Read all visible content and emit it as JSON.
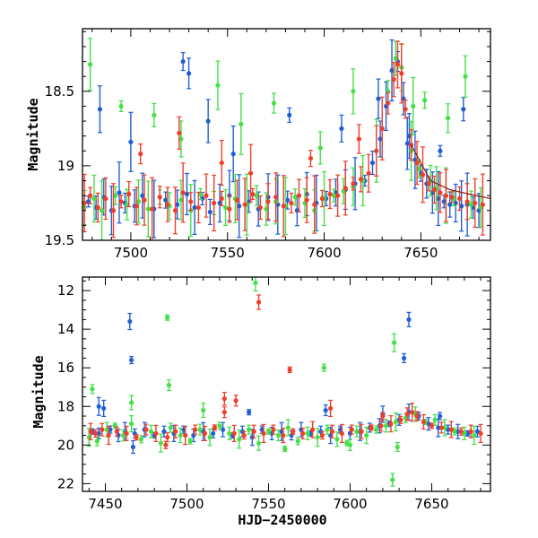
{
  "colors": {
    "blue": "#1f5fd6",
    "green": "#44e048",
    "red": "#f03e2a",
    "axis": "#000000"
  },
  "chart_data": [
    {
      "type": "scatter",
      "xlabel": "",
      "ylabel": "Magnitude",
      "xlim": [
        7475,
        7686
      ],
      "ylim": [
        19.5,
        18.08
      ],
      "y_inverted": true,
      "grid": false,
      "xticks": [
        7500,
        7550,
        7600,
        7650
      ],
      "yticks": [
        19.5,
        19,
        18.5
      ],
      "ytick_labels": [
        "19.5",
        "19",
        "18.5"
      ],
      "series": [
        {
          "color_key": "blue",
          "x": [
            7478,
            7482,
            7486,
            7490,
            7494,
            7497,
            7502,
            7506,
            7512,
            7518,
            7524,
            7529,
            7533,
            7537,
            7541,
            7546,
            7551,
            7556,
            7561,
            7566,
            7571,
            7576,
            7581,
            7586,
            7591,
            7596,
            7601,
            7606,
            7611,
            7616,
            7621,
            7625,
            7629,
            7632,
            7635,
            7638,
            7641,
            7644,
            7647,
            7650,
            7653,
            7656,
            7659,
            7662,
            7665,
            7668,
            7671,
            7674,
            7677,
            7680,
            7484,
            7500,
            7527,
            7530,
            7540,
            7553,
            7582,
            7609,
            7628,
            7643,
            7660,
            7672
          ],
          "y": [
            19.24,
            19.28,
            19.21,
            19.3,
            19.18,
            19.25,
            19.27,
            19.2,
            19.29,
            19.23,
            19.26,
            19.19,
            19.28,
            19.22,
            19.31,
            19.25,
            19.2,
            19.27,
            19.24,
            19.29,
            19.21,
            19.26,
            19.23,
            19.3,
            19.19,
            19.25,
            19.22,
            19.18,
            19.16,
            19.12,
            19.1,
            18.98,
            18.82,
            18.6,
            18.36,
            18.3,
            18.55,
            18.8,
            18.96,
            19.05,
            19.12,
            19.18,
            19.22,
            19.24,
            19.26,
            19.25,
            19.27,
            19.26,
            19.28,
            19.3,
            18.62,
            18.84,
            18.3,
            18.38,
            18.7,
            18.92,
            18.66,
            18.75,
            18.55,
            18.85,
            18.9,
            18.62
          ]
        },
        {
          "color_key": "green",
          "x": [
            7476,
            7481,
            7485,
            7492,
            7498,
            7504,
            7509,
            7515,
            7520,
            7526,
            7531,
            7536,
            7543,
            7549,
            7554,
            7560,
            7565,
            7570,
            7575,
            7580,
            7585,
            7590,
            7595,
            7600,
            7605,
            7610,
            7615,
            7620,
            7627,
            7633,
            7637,
            7640,
            7645,
            7649,
            7655,
            7658,
            7663,
            7667,
            7676,
            7681,
            7479,
            7495,
            7512,
            7526,
            7545,
            7557,
            7574,
            7598,
            7615,
            7646,
            7652,
            7664,
            7673
          ],
          "y": [
            19.28,
            19.22,
            19.3,
            19.2,
            19.26,
            19.24,
            19.29,
            19.21,
            19.27,
            19.23,
            19.3,
            19.19,
            19.25,
            19.28,
            19.22,
            19.26,
            19.2,
            19.29,
            19.24,
            19.27,
            19.21,
            19.25,
            19.3,
            19.22,
            19.2,
            19.17,
            19.14,
            19.1,
            18.9,
            18.5,
            18.28,
            18.34,
            18.9,
            19.02,
            19.1,
            19.15,
            19.2,
            19.22,
            19.26,
            19.28,
            18.32,
            18.6,
            18.66,
            18.82,
            18.46,
            18.72,
            18.58,
            18.88,
            18.5,
            18.6,
            18.56,
            18.68,
            18.4
          ]
        },
        {
          "color_key": "red",
          "x": [
            7476,
            7479,
            7483,
            7487,
            7491,
            7495,
            7499,
            7503,
            7507,
            7511,
            7515,
            7519,
            7523,
            7527,
            7531,
            7535,
            7539,
            7543,
            7547,
            7551,
            7555,
            7559,
            7563,
            7567,
            7571,
            7575,
            7579,
            7583,
            7587,
            7591,
            7595,
            7599,
            7603,
            7607,
            7611,
            7615,
            7619,
            7623,
            7627,
            7630,
            7633,
            7636,
            7638,
            7640,
            7642,
            7645,
            7648,
            7651,
            7654,
            7657,
            7660,
            7663,
            7666,
            7670,
            7674,
            7678,
            7682,
            7505,
            7525,
            7547,
            7562,
            7593,
            7618
          ],
          "y": [
            19.25,
            19.2,
            19.28,
            19.22,
            19.3,
            19.24,
            19.19,
            19.27,
            19.23,
            19.29,
            19.21,
            19.26,
            19.3,
            19.18,
            19.24,
            19.28,
            19.2,
            19.25,
            19.22,
            19.29,
            19.23,
            19.26,
            19.19,
            19.28,
            19.24,
            19.21,
            19.27,
            19.25,
            19.2,
            19.23,
            19.26,
            19.22,
            19.19,
            19.2,
            19.15,
            19.12,
            19.09,
            19.05,
            18.9,
            18.75,
            18.58,
            18.42,
            18.32,
            18.38,
            18.62,
            18.86,
            18.98,
            19.06,
            19.12,
            19.16,
            19.18,
            19.2,
            19.21,
            19.22,
            19.24,
            19.25,
            19.26,
            18.92,
            18.78,
            18.98,
            19.05,
            18.95,
            18.82
          ]
        }
      ]
    },
    {
      "type": "scatter",
      "xlabel": "HJD−2450000",
      "ylabel": "Magnitude",
      "xlim": [
        7436,
        7686
      ],
      "ylim": [
        22.4,
        11.3
      ],
      "y_inverted": true,
      "grid": false,
      "xticks": [
        7450,
        7500,
        7550,
        7600,
        7650
      ],
      "yticks": [
        12,
        14,
        16,
        18,
        20,
        22
      ],
      "ytick_labels": [
        "12",
        "14",
        "16",
        "18",
        "20",
        "22"
      ],
      "series": [
        {
          "color_key": "blue",
          "x": [
            7442,
            7446,
            7449,
            7453,
            7458,
            7462,
            7468,
            7474,
            7480,
            7486,
            7492,
            7498,
            7504,
            7510,
            7516,
            7522,
            7528,
            7534,
            7540,
            7546,
            7552,
            7558,
            7564,
            7570,
            7576,
            7582,
            7588,
            7594,
            7600,
            7606,
            7612,
            7618,
            7624,
            7630,
            7636,
            7642,
            7648,
            7654,
            7660,
            7666,
            7672,
            7678,
            7465,
            7466,
            7467,
            7446,
            7633,
            7636,
            7538,
            7585,
            7620,
            7655
          ],
          "y": [
            19.3,
            19.4,
            18.1,
            19.2,
            19.5,
            19.3,
            19.4,
            19.2,
            19.5,
            19.3,
            19.4,
            19.2,
            19.5,
            19.3,
            19.4,
            19.2,
            19.5,
            19.3,
            19.6,
            19.2,
            19.4,
            19.3,
            19.5,
            19.2,
            19.4,
            19.3,
            19.5,
            19.2,
            19.4,
            19.3,
            19.1,
            19.0,
            18.9,
            18.7,
            18.3,
            18.5,
            18.9,
            19.1,
            19.2,
            19.3,
            19.4,
            19.3,
            13.6,
            15.6,
            20.1,
            18.0,
            15.5,
            13.5,
            18.3,
            18.2,
            18.4,
            18.5
          ]
        },
        {
          "color_key": "green",
          "x": [
            7440,
            7445,
            7451,
            7456,
            7461,
            7466,
            7472,
            7478,
            7484,
            7490,
            7496,
            7502,
            7508,
            7514,
            7520,
            7526,
            7532,
            7538,
            7544,
            7550,
            7556,
            7562,
            7568,
            7574,
            7580,
            7586,
            7592,
            7598,
            7604,
            7610,
            7616,
            7622,
            7628,
            7634,
            7640,
            7646,
            7652,
            7658,
            7664,
            7670,
            7676,
            7442,
            7466,
            7488,
            7489,
            7542,
            7584,
            7626,
            7627,
            7629,
            7510,
            7560,
            7600
          ],
          "y": [
            19.6,
            19.8,
            19.2,
            19.0,
            19.5,
            18.9,
            19.7,
            19.3,
            19.9,
            19.1,
            19.5,
            19.8,
            19.2,
            19.6,
            19.0,
            19.4,
            19.7,
            19.2,
            19.9,
            19.3,
            19.5,
            19.1,
            19.8,
            19.4,
            19.6,
            19.2,
            19.7,
            19.9,
            19.3,
            19.5,
            19.2,
            19.0,
            18.8,
            18.6,
            18.4,
            18.8,
            18.7,
            19.1,
            19.3,
            19.4,
            19.5,
            17.1,
            17.8,
            13.4,
            16.9,
            11.6,
            16.0,
            21.8,
            14.7,
            20.1,
            18.2,
            20.2,
            20.0
          ]
        },
        {
          "color_key": "red",
          "x": [
            7441,
            7444,
            7448,
            7452,
            7457,
            7463,
            7469,
            7475,
            7481,
            7487,
            7493,
            7499,
            7505,
            7511,
            7517,
            7523,
            7529,
            7535,
            7541,
            7547,
            7553,
            7559,
            7565,
            7571,
            7577,
            7583,
            7589,
            7595,
            7601,
            7607,
            7613,
            7619,
            7625,
            7631,
            7635,
            7638,
            7641,
            7645,
            7650,
            7656,
            7662,
            7668,
            7674,
            7680,
            7488,
            7544,
            7563,
            7530,
            7588,
            7620,
            7523
          ],
          "y": [
            19.3,
            19.4,
            19.2,
            19.5,
            19.3,
            19.4,
            19.6,
            19.2,
            19.4,
            20.0,
            19.3,
            19.5,
            19.2,
            19.4,
            19.1,
            18.3,
            19.4,
            19.5,
            19.3,
            19.4,
            19.2,
            19.5,
            19.3,
            19.4,
            19.2,
            19.5,
            19.3,
            19.4,
            19.2,
            19.3,
            19.1,
            19.0,
            18.9,
            18.7,
            18.4,
            18.3,
            18.5,
            18.8,
            19.0,
            19.1,
            19.2,
            19.3,
            19.3,
            19.4,
            19.6,
            12.6,
            16.1,
            17.7,
            18.1,
            18.5,
            17.6
          ]
        }
      ]
    }
  ]
}
